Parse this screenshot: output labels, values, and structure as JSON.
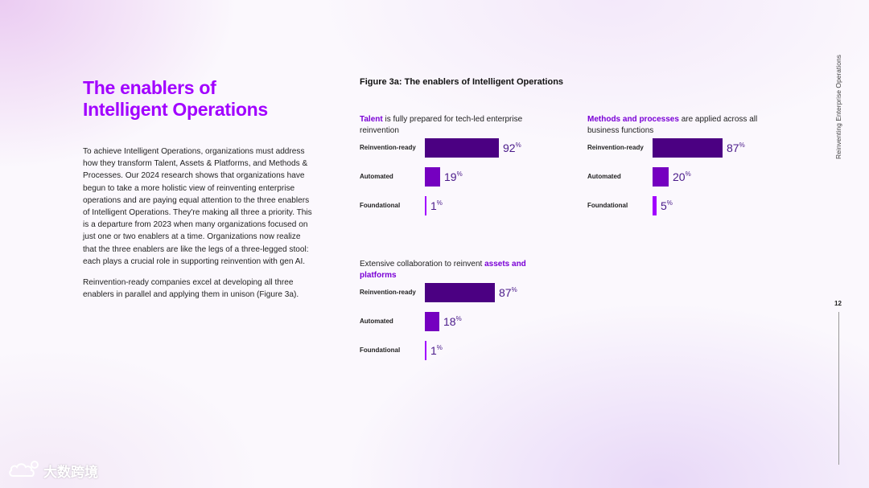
{
  "heading": {
    "line1": "The enablers of",
    "line2": "Intelligent Operations"
  },
  "body": {
    "paragraph1": "To achieve Intelligent Operations, organizations must address how they transform Talent, Assets & Platforms, and Methods & Processes. Our 2024 research shows that organizations have begun to take a more holistic view of reinventing enterprise operations and are paying equal attention to the three enablers of Intelligent Operations. They're making all three a priority. This is a departure from 2023 when many organizations focused on just one or two enablers at a time. Organizations now realize that the three enablers are like the legs of a three-legged stool: each plays a crucial role in supporting reinvention with gen AI.",
    "paragraph2": "Reinvention-ready companies excel at developing all three enablers in parallel and applying them in unison (Figure 3a)."
  },
  "figure_title": "Figure 3a: The enablers of Intelligent Operations",
  "sidebar": {
    "vertical_label": "Reinventing Enterprise Operations",
    "page_number": "12"
  },
  "watermark": {
    "text": "大数跨境",
    "icon": "cloud-logo-icon"
  },
  "colors": {
    "accent": "#a100ff",
    "bar_dark": "#4b0082",
    "bar_mid": "#7500c0",
    "bar_light": "#a100ff"
  },
  "chart_data": [
    {
      "type": "bar",
      "orientation": "horizontal",
      "title_highlight": "Talent",
      "title_rest": " is fully prepared for tech-led enterprise reinvention",
      "categories": [
        "Reinvention-ready",
        "Automated",
        "Foundational"
      ],
      "values": [
        92,
        19,
        1
      ],
      "value_suffix": "%",
      "xlim": [
        0,
        100
      ]
    },
    {
      "type": "bar",
      "orientation": "horizontal",
      "title_highlight": "Methods and processes",
      "title_rest": " are applied across all business functions",
      "categories": [
        "Reinvention-ready",
        "Automated",
        "Foundational"
      ],
      "values": [
        87,
        20,
        5
      ],
      "value_suffix": "%",
      "xlim": [
        0,
        100
      ]
    },
    {
      "type": "bar",
      "orientation": "horizontal",
      "title_lead": "Extensive collaboration to reinvent ",
      "title_highlight": "assets and platforms",
      "categories": [
        "Reinvention-ready",
        "Automated",
        "Foundational"
      ],
      "values": [
        87,
        18,
        1
      ],
      "value_suffix": "%",
      "xlim": [
        0,
        100
      ]
    }
  ]
}
